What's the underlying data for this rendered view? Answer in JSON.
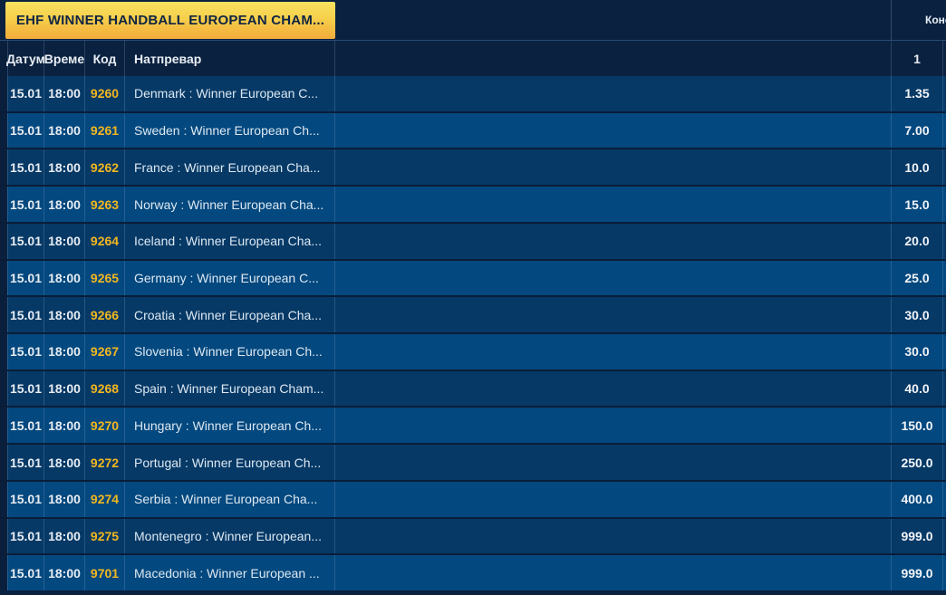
{
  "header": {
    "tournament_title": "EHF WINNER HANDBALL EUROPEAN CHAM...",
    "market_group_label": "Коне"
  },
  "table": {
    "columns": {
      "date": "Датум",
      "time": "Време",
      "code": "Код",
      "match": "Натпревар",
      "odd1": "1"
    },
    "rows": [
      {
        "date": "15.01",
        "time": "18:00",
        "code": "9260",
        "match": "Denmark : Winner European C...",
        "odd1": "1.35"
      },
      {
        "date": "15.01",
        "time": "18:00",
        "code": "9261",
        "match": "Sweden : Winner European Ch...",
        "odd1": "7.00"
      },
      {
        "date": "15.01",
        "time": "18:00",
        "code": "9262",
        "match": "France : Winner European Cha...",
        "odd1": "10.0"
      },
      {
        "date": "15.01",
        "time": "18:00",
        "code": "9263",
        "match": "Norway : Winner European Cha...",
        "odd1": "15.0"
      },
      {
        "date": "15.01",
        "time": "18:00",
        "code": "9264",
        "match": "Iceland : Winner European Cha...",
        "odd1": "20.0"
      },
      {
        "date": "15.01",
        "time": "18:00",
        "code": "9265",
        "match": "Germany : Winner European C...",
        "odd1": "25.0"
      },
      {
        "date": "15.01",
        "time": "18:00",
        "code": "9266",
        "match": "Croatia : Winner European Cha...",
        "odd1": "30.0"
      },
      {
        "date": "15.01",
        "time": "18:00",
        "code": "9267",
        "match": "Slovenia : Winner European Ch...",
        "odd1": "30.0"
      },
      {
        "date": "15.01",
        "time": "18:00",
        "code": "9268",
        "match": "Spain : Winner European Cham...",
        "odd1": "40.0"
      },
      {
        "date": "15.01",
        "time": "18:00",
        "code": "9270",
        "match": "Hungary : Winner European Ch...",
        "odd1": "150.0"
      },
      {
        "date": "15.01",
        "time": "18:00",
        "code": "9272",
        "match": "Portugal : Winner European Ch...",
        "odd1": "250.0"
      },
      {
        "date": "15.01",
        "time": "18:00",
        "code": "9274",
        "match": "Serbia : Winner European Cha...",
        "odd1": "400.0"
      },
      {
        "date": "15.01",
        "time": "18:00",
        "code": "9275",
        "match": "Montenegro : Winner European...",
        "odd1": "999.0"
      },
      {
        "date": "15.01",
        "time": "18:00",
        "code": "9701",
        "match": "Macedonia : Winner European ...",
        "odd1": "999.0"
      }
    ]
  },
  "colors": {
    "accent_yellow": "#f6cf4b",
    "code_text": "#f3b71f",
    "row_dark": "#063966",
    "row_light": "#03487e",
    "bar_background": "#0a2140"
  }
}
